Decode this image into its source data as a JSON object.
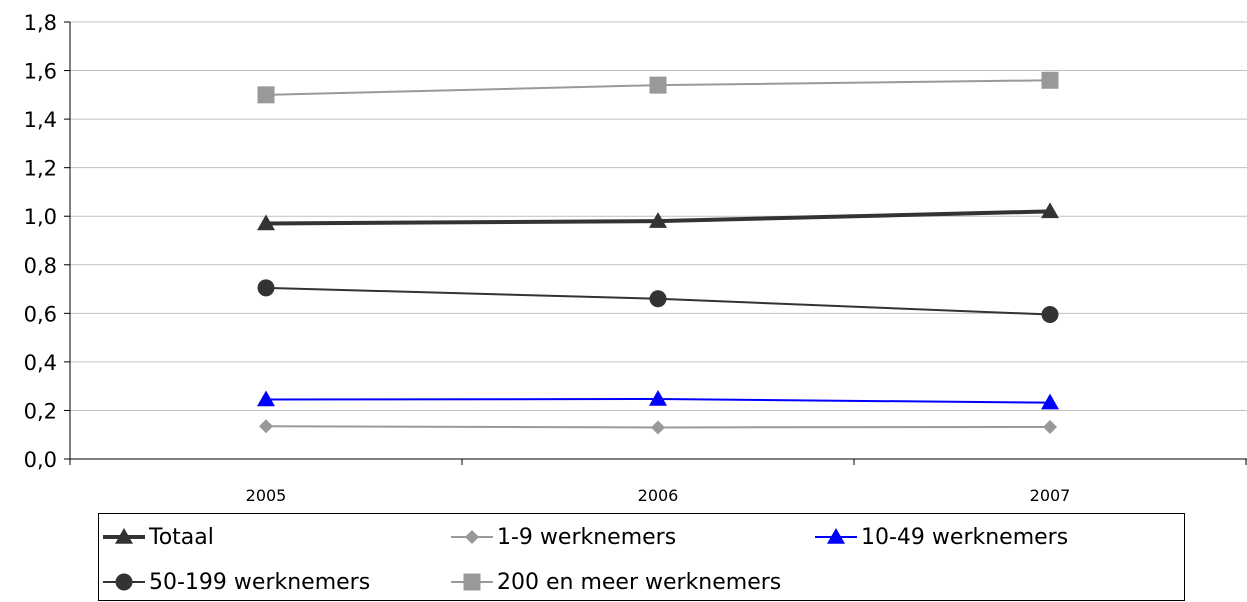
{
  "chart_data": {
    "type": "line",
    "title": "",
    "xlabel": "",
    "ylabel": "",
    "categories": [
      "2005",
      "2006",
      "2007"
    ],
    "ylim": [
      0,
      1.8
    ],
    "yticks": [
      "0,0",
      "0,2",
      "0,4",
      "0,6",
      "0,8",
      "1,0",
      "1,2",
      "1,4",
      "1,6",
      "1,8"
    ],
    "grid": "horizontal",
    "legend_position": "bottom",
    "series": [
      {
        "name": "Totaal",
        "values": [
          0.97,
          0.98,
          1.02
        ],
        "color": "#333333",
        "marker": "triangle",
        "line_width": 4
      },
      {
        "name": "1-9 werknemers",
        "values": [
          0.135,
          0.13,
          0.132
        ],
        "color": "#999999",
        "marker": "diamond",
        "line_width": 2
      },
      {
        "name": "10-49 werknemers",
        "values": [
          0.245,
          0.247,
          0.232
        ],
        "color": "#0000ff",
        "marker": "triangle",
        "line_width": 2
      },
      {
        "name": "50-199 werknemers",
        "values": [
          0.705,
          0.66,
          0.595
        ],
        "color": "#333333",
        "marker": "circle",
        "line_width": 2
      },
      {
        "name": "200 en meer werknemers",
        "values": [
          1.5,
          1.54,
          1.56
        ],
        "color": "#999999",
        "marker": "square",
        "line_width": 2
      }
    ]
  }
}
